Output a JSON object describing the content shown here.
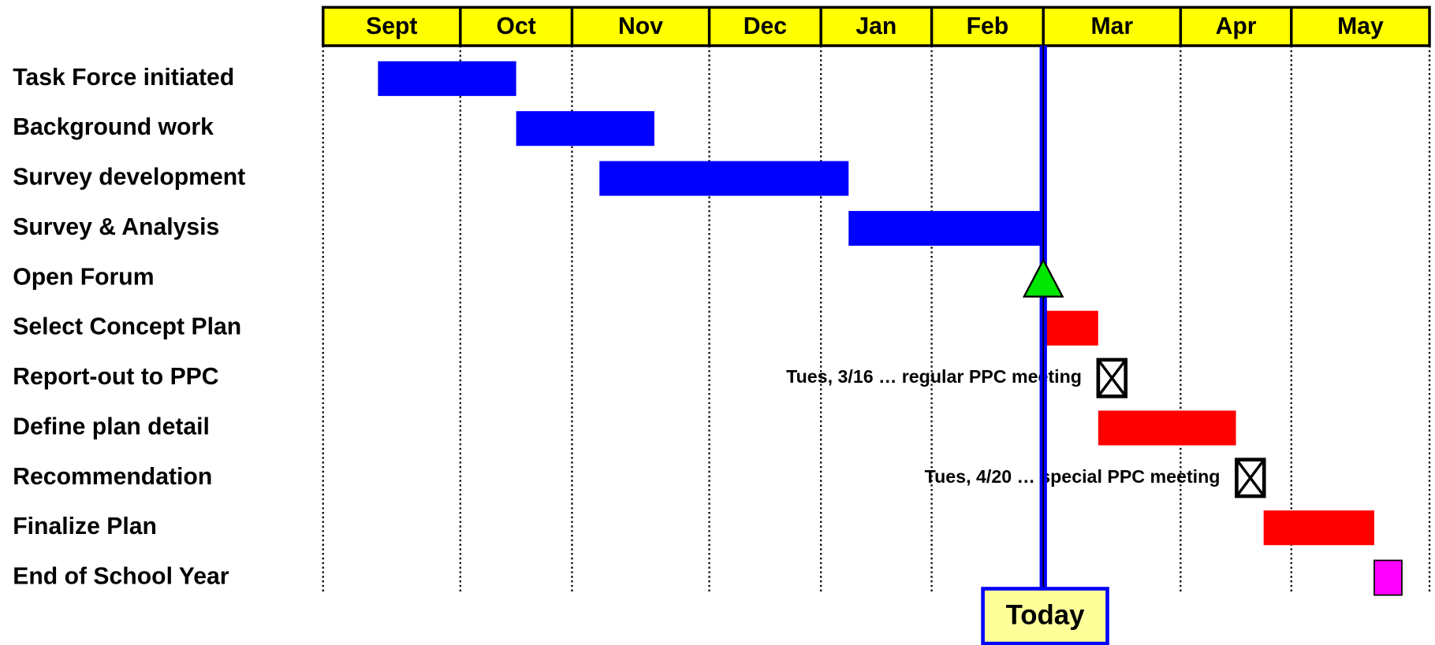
{
  "chart_data": {
    "type": "gantt",
    "categories": [
      "Sept",
      "Oct",
      "Nov",
      "Dec",
      "Jan",
      "Feb",
      "Mar",
      "Apr",
      "May"
    ],
    "header_color": "#ffff00",
    "tasks": [
      {
        "name": "Task Force initiated",
        "kind": "bar",
        "start": 0.4,
        "end": 1.5,
        "color": "#0000ff"
      },
      {
        "name": "Background work",
        "kind": "bar",
        "start": 1.5,
        "end": 2.6,
        "color": "#0000ff"
      },
      {
        "name": "Survey development",
        "kind": "bar",
        "start": 2.2,
        "end": 4.25,
        "color": "#0000ff"
      },
      {
        "name": "Survey & Analysis",
        "kind": "bar",
        "start": 4.25,
        "end": 6.0,
        "color": "#0000ff"
      },
      {
        "name": "Open Forum",
        "kind": "milestone",
        "start": 6.0,
        "color": "#00e600"
      },
      {
        "name": "Select Concept Plan",
        "kind": "bar",
        "start": 6.0,
        "end": 6.4,
        "color": "#ff0000"
      },
      {
        "name": "Report-out to PPC",
        "kind": "meeting",
        "start": 6.5,
        "note": "Tues, 3/16 … regular PPC meeting"
      },
      {
        "name": "Define plan detail",
        "kind": "bar",
        "start": 6.4,
        "end": 7.5,
        "color": "#ff0000"
      },
      {
        "name": "Recommendation",
        "kind": "meeting",
        "start": 7.63,
        "note": "Tues, 4/20  … special PPC meeting"
      },
      {
        "name": "Finalize Plan",
        "kind": "bar",
        "start": 7.75,
        "end": 8.6,
        "color": "#ff0000"
      },
      {
        "name": "End of School Year",
        "kind": "bar",
        "start": 8.6,
        "end": 8.8,
        "color": "#ff00ff"
      }
    ],
    "today": {
      "label": "Today",
      "value": 6.0,
      "color": "#0000ff",
      "box_color": "#ffff99"
    }
  }
}
